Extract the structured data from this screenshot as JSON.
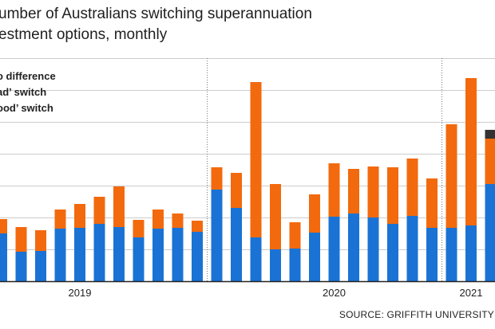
{
  "title_lines": [
    "umber of Australians switching superannuation",
    "estment options, monthly"
  ],
  "legend": [
    "o difference",
    "ad’ switch",
    "ood’ switch"
  ],
  "source": "SOURCE: GRIFFITH UNIVERSITY",
  "colors": {
    "good": "#1a73d4",
    "bad": "#f26a0d",
    "no_difference": "#333333",
    "grid": "#cccccc",
    "baseline": "#222222"
  },
  "chart_data": {
    "type": "bar",
    "stacked": true,
    "title": "umber of Australians switching superannuation estment options, monthly",
    "xlabel": "",
    "ylabel": "",
    "year_labels": [
      {
        "label": "2019",
        "index": 4
      },
      {
        "label": "2020",
        "index": 17
      },
      {
        "label": "2021",
        "index": 24
      }
    ],
    "year_dividers_after_index": [
      10,
      22
    ],
    "grid": true,
    "legend_position": "top-left",
    "series": [
      {
        "name": "ood’ switch",
        "values": [
          60,
          37,
          38,
          66,
          67,
          72,
          68,
          55,
          66,
          67,
          62,
          115,
          92,
          55,
          40,
          41,
          61,
          81,
          85,
          80,
          72,
          82,
          67,
          67,
          70,
          122
        ]
      },
      {
        "name": "ad’ switch",
        "values": [
          18,
          31,
          26,
          24,
          30,
          34,
          51,
          22,
          24,
          18,
          14,
          28,
          44,
          195,
          82,
          33,
          48,
          67,
          56,
          64,
          71,
          72,
          62,
          130,
          185,
          57
        ]
      },
      {
        "name": "o difference",
        "values": [
          0,
          0,
          0,
          0,
          0,
          0,
          0,
          0,
          0,
          0,
          0,
          0,
          0,
          0,
          0,
          0,
          0,
          0,
          0,
          0,
          0,
          0,
          0,
          0,
          0,
          11
        ]
      }
    ],
    "ylim": [
      0,
      280
    ]
  }
}
